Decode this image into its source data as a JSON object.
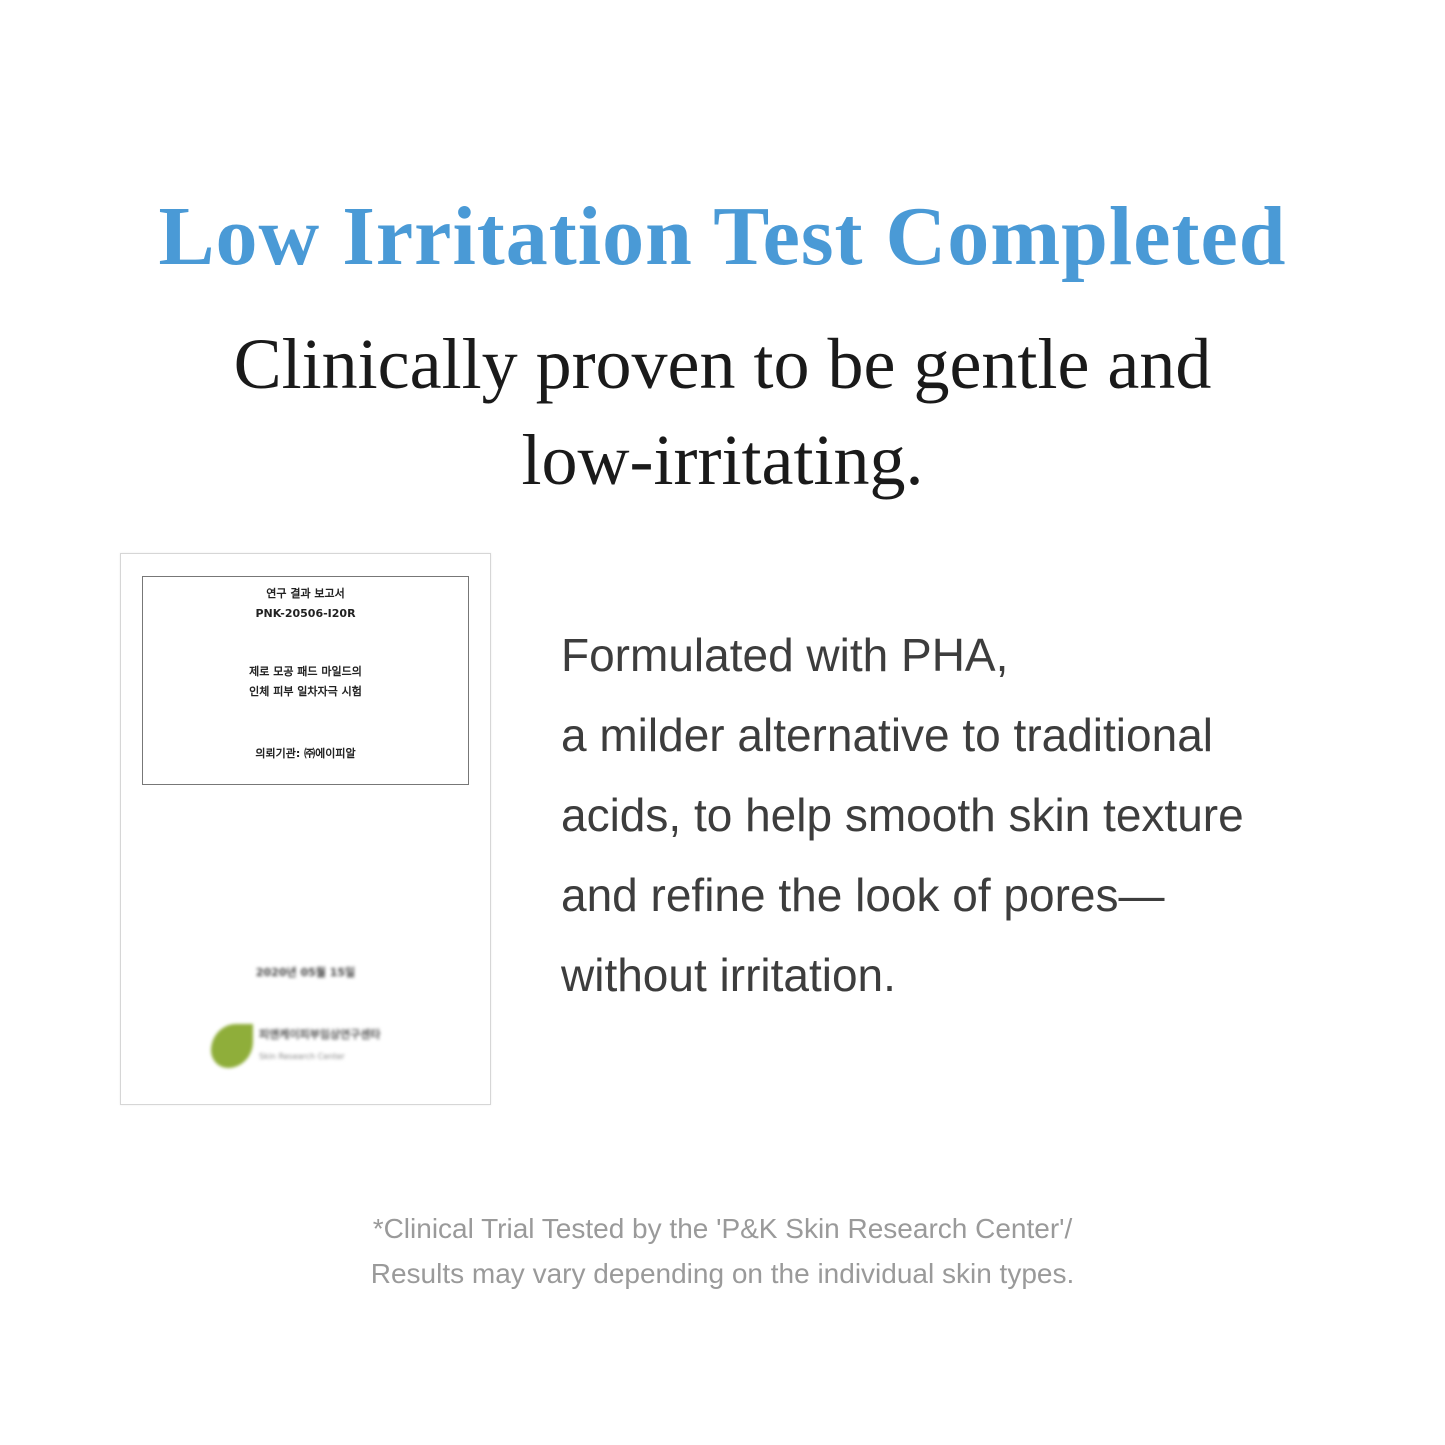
{
  "title": "Low Irritation Test Completed",
  "subtitle": [
    "Clinically proven to be gentle and",
    "low-irritating."
  ],
  "report": {
    "heading": "연구 결과 보고서",
    "code": "PNK-20506-I20R",
    "subject": [
      "제로 모공 패드 마일드의",
      "인체 피부 일차자극 시험"
    ],
    "client": "의뢰기관: ㈜에이피알",
    "date": "2020년 05월 15일",
    "logo_ko": "피앤케이피부임상연구센타",
    "logo_en": "Skin Research Center"
  },
  "body": [
    "Formulated with PHA,",
    "a milder alternative to traditional",
    "acids, to help smooth skin texture",
    "and refine the look of pores—",
    "without irritation."
  ],
  "footnote": [
    "*Clinical Trial Tested by the 'P&K Skin Research Center'/",
    "Results may vary depending on the individual skin types."
  ],
  "colors": {
    "title": "#4a9ad6",
    "logo_leaf": "#8fae3a"
  }
}
